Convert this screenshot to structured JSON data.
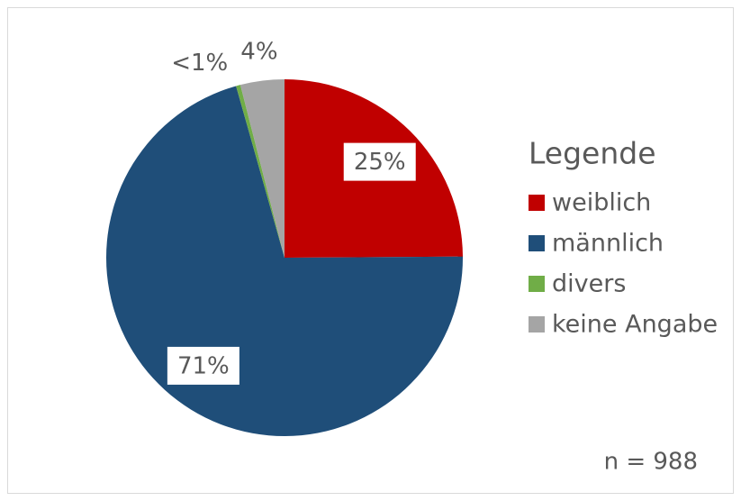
{
  "chart_data": {
    "type": "pie",
    "categories": [
      "weiblich",
      "männlich",
      "divers",
      "keine Angabe"
    ],
    "values": [
      25,
      71,
      0.4,
      4
    ],
    "value_labels": [
      "25%",
      "71%",
      "<1%",
      "4%"
    ],
    "colors": [
      "#c00000",
      "#1f4e79",
      "#70ad47",
      "#a5a5a5"
    ],
    "legend_title": "Legende",
    "legend": "right",
    "annotation": "n = 988"
  }
}
